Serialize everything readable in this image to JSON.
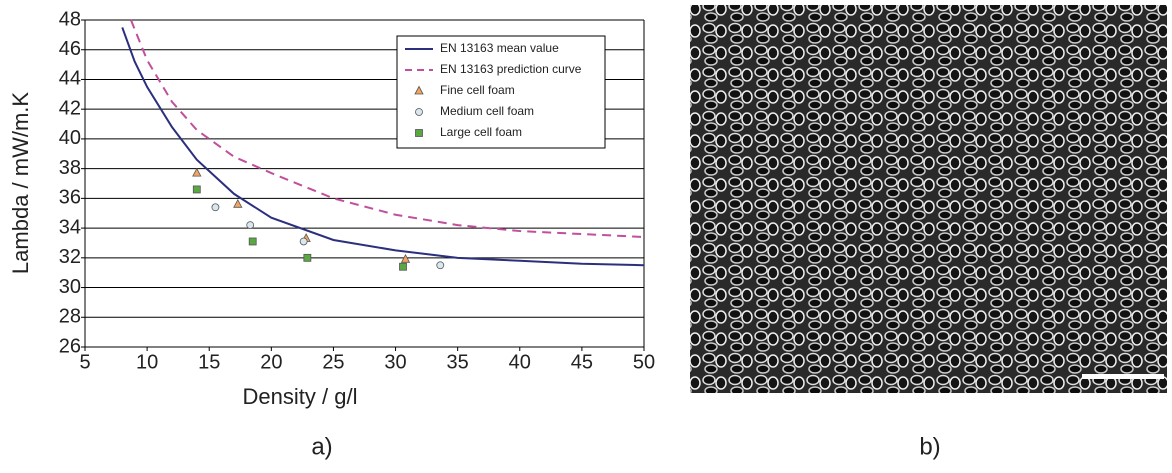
{
  "chart_data": {
    "type": "line",
    "x_label": "Density / g/l",
    "y_label": "Lambda / mW/m.K",
    "xlim": [
      5,
      50
    ],
    "xticks": [
      5,
      10,
      15,
      20,
      25,
      30,
      35,
      40,
      45,
      50
    ],
    "ylim": [
      26,
      48
    ],
    "yticks": [
      26,
      28,
      30,
      32,
      34,
      36,
      38,
      40,
      42,
      44,
      46,
      48
    ],
    "grid": true,
    "legend": "upper right",
    "series": [
      {
        "name": "EN 13163 mean value",
        "color": "#2b2f7e",
        "style": "solid",
        "x": [
          8,
          9,
          10,
          12,
          14,
          17,
          20,
          25,
          30,
          35,
          40,
          45,
          50
        ],
        "values": [
          47.5,
          45.2,
          43.5,
          40.8,
          38.6,
          36.3,
          34.7,
          33.2,
          32.5,
          32.0,
          31.8,
          31.6,
          31.5
        ]
      },
      {
        "name": "EN 13163 prediction curve",
        "color": "#c0509c",
        "style": "dashed",
        "x": [
          8.7,
          10,
          12,
          14,
          17,
          20,
          25,
          30,
          35,
          40,
          45,
          50
        ],
        "values": [
          48,
          45.3,
          42.5,
          40.6,
          38.8,
          37.7,
          36.0,
          34.9,
          34.2,
          33.8,
          33.6,
          33.4
        ]
      },
      {
        "name": "Fine cell foam",
        "color": "#f4a460",
        "style": "triangle",
        "x": [
          14,
          17.3,
          22.8,
          30.8
        ],
        "values": [
          37.7,
          35.6,
          33.3,
          31.9
        ]
      },
      {
        "name": "Medium cell foam",
        "color": "#d9e8ee",
        "style": "circle",
        "x": [
          15.5,
          18.3,
          22.6,
          33.6
        ],
        "values": [
          35.4,
          34.2,
          33.1,
          31.5
        ]
      },
      {
        "name": "Large cell foam",
        "color": "#5aa843",
        "style": "square",
        "x": [
          14,
          18.5,
          22.9,
          30.6
        ],
        "values": [
          36.6,
          33.1,
          32.0,
          31.4
        ]
      }
    ]
  },
  "panel_labels": [
    "a)",
    "b)"
  ]
}
